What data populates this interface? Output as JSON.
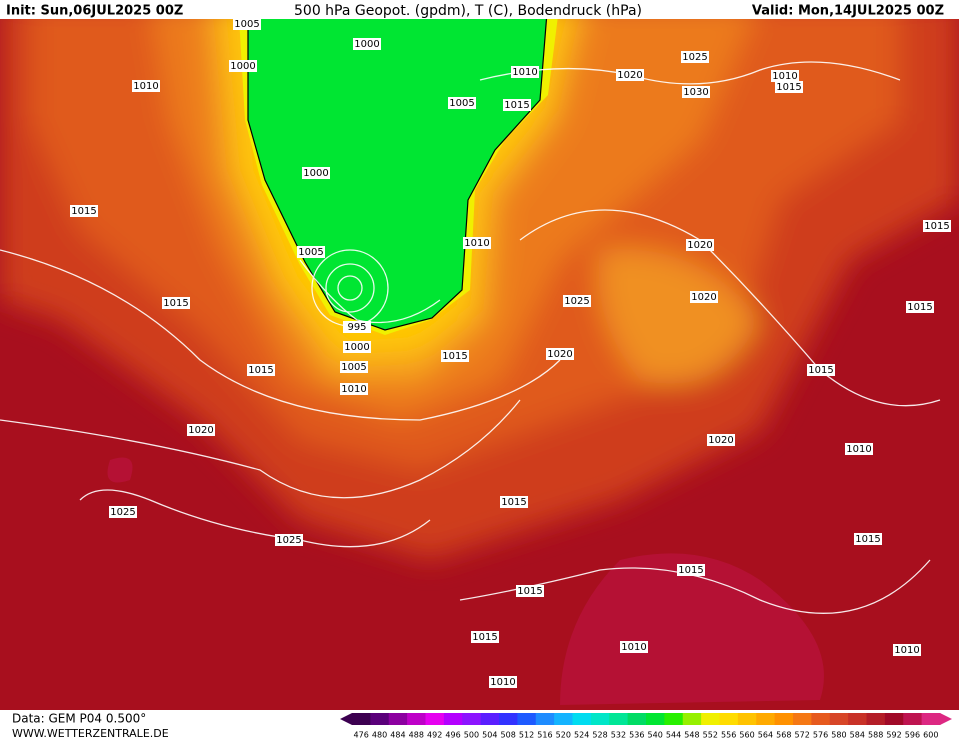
{
  "header": {
    "init": "Init: Sun,06JUL2025 00Z",
    "title": "500 hPa Geopot. (gpdm), T (C), Bodendruck (hPa)",
    "valid": "Valid: Mon,14JUL2025 00Z"
  },
  "isobar_labels": [
    "1005",
    "1000",
    "1000",
    "1010",
    "1010",
    "1020",
    "1025",
    "1010",
    "1015",
    "1005",
    "1015",
    "1030",
    "1000",
    "1015",
    "1010",
    "1005",
    "1020",
    "1015",
    "1015",
    "1025",
    "1020",
    "1015",
    "995",
    "1000",
    "1015",
    "1020",
    "1005",
    "1015",
    "1015",
    "1010",
    "1020",
    "1020",
    "1010",
    "1015",
    "1025",
    "1025",
    "1015",
    "1015",
    "1015",
    "1015",
    "1010",
    "1010",
    "1010"
  ],
  "footer": {
    "source": "Data: GEM P04 0.500°",
    "site": "WWW.WETTERZENTRALE.DE"
  },
  "scale": {
    "values": [
      476,
      480,
      484,
      488,
      492,
      496,
      500,
      504,
      508,
      512,
      516,
      520,
      524,
      528,
      532,
      536,
      540,
      544,
      548,
      552,
      556,
      560,
      564,
      568,
      572,
      576,
      580,
      584,
      588,
      592,
      596,
      600
    ],
    "colors": [
      "#3c0050",
      "#5a007a",
      "#8c00a0",
      "#be00c8",
      "#e600f0",
      "#b400ff",
      "#8c14ff",
      "#5a1eff",
      "#3232ff",
      "#1e5aff",
      "#1e8cff",
      "#14b4ff",
      "#00dcf0",
      "#00e6c8",
      "#00e696",
      "#00dc64",
      "#00e632",
      "#28f000",
      "#96f000",
      "#f0f000",
      "#ffdc00",
      "#ffc300",
      "#ffaa00",
      "#ff9100",
      "#f57814",
      "#e65a1e",
      "#d74628",
      "#c83228",
      "#b41e28",
      "#a00a28",
      "#be1450",
      "#dc2882"
    ]
  }
}
